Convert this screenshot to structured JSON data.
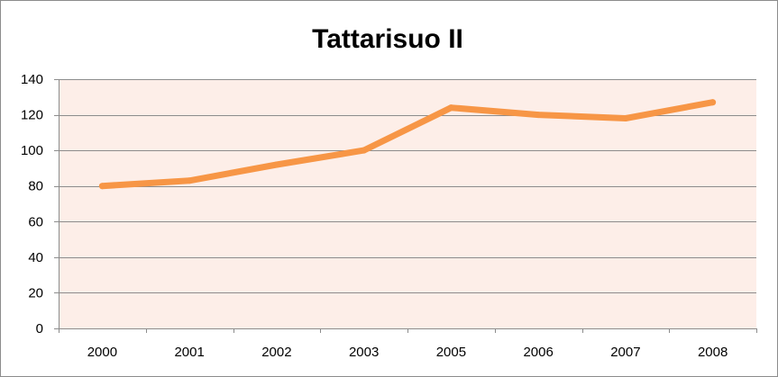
{
  "chart_data": {
    "type": "line",
    "title": "Tattarisuo II",
    "categories": [
      "2000",
      "2001",
      "2002",
      "2003",
      "2005",
      "2006",
      "2007",
      "2008"
    ],
    "values": [
      80,
      83,
      92,
      100,
      124,
      120,
      118,
      127
    ],
    "ylim": [
      0,
      140
    ],
    "yticks": [
      0,
      20,
      40,
      60,
      80,
      100,
      120,
      140
    ],
    "xlabel": "",
    "ylabel": "",
    "grid": true,
    "legend": "none",
    "colors": {
      "line": "#f79646",
      "plot_background": "#fdeee8",
      "gridline": "#8c8c8c",
      "axis": "#8c8c8c",
      "frame": "#8c8c8c"
    }
  }
}
